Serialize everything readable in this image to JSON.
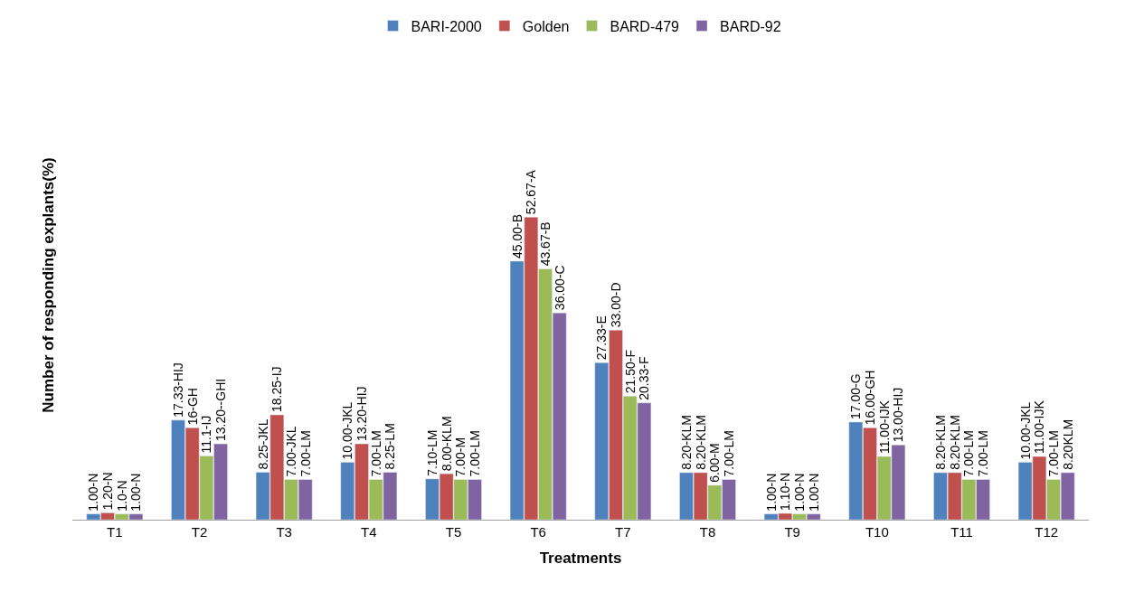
{
  "chart_data": {
    "type": "bar",
    "xlabel": "Treatments",
    "ylabel": "Number of responding explants(%)",
    "categories": [
      "T1",
      "T2",
      "T3",
      "T4",
      "T5",
      "T6",
      "T7",
      "T8",
      "T9",
      "T10",
      "T11",
      "T12"
    ],
    "series": [
      {
        "name": "BARI-2000",
        "color": "#4f81bd",
        "values": [
          1.0,
          17.33,
          8.25,
          10.0,
          7.1,
          45.0,
          27.33,
          8.2,
          1.0,
          17.0,
          8.2,
          10.0
        ],
        "value_labels": [
          "1.00-N",
          "17.33-HIJ",
          "8.25-JKL",
          "10.00-JKL",
          "7.10-LM",
          "45.00-B",
          "27.33-E",
          "8.20-KLM",
          "1.00-N",
          "17.00-G",
          "8.20-KLM",
          "10.00-JKL"
        ]
      },
      {
        "name": "Golden",
        "color": "#c0504d",
        "values": [
          1.2,
          16,
          18.25,
          13.2,
          8.0,
          52.67,
          33.0,
          8.2,
          1.1,
          16.0,
          8.2,
          11.0
        ],
        "value_labels": [
          "1.20-N",
          "16-GH",
          "18.25-IJ",
          "13.20-HIJ",
          "8.00-KLM",
          "52.67-A",
          "33.00-D",
          "8.20-KLM",
          "1.10-N",
          "16.00-GH",
          "8.20-KLM",
          "11.00-IJK"
        ]
      },
      {
        "name": "BARD-479",
        "color": "#9bbb59",
        "values": [
          1.0,
          11.1,
          7.0,
          7.0,
          7.0,
          43.67,
          21.5,
          6.0,
          1.0,
          11.0,
          7.0,
          7.0
        ],
        "value_labels": [
          "1.0-N",
          "11.1-IJ",
          "7.00-JKL",
          "7.00-LM",
          "7.00-M",
          "43.67-B",
          "21.50-F",
          "6.00-M",
          "1.00-N",
          "11.00-IJK",
          "7.00-LM",
          "7.00-LM"
        ]
      },
      {
        "name": "BARD-92",
        "color": "#8064a2",
        "values": [
          1.0,
          13.2,
          7.0,
          8.25,
          7.0,
          36.0,
          20.33,
          7.0,
          1.0,
          13.0,
          7.0,
          8.2
        ],
        "value_labels": [
          "1.00-N",
          "13.20--GHI",
          "7.00-LM",
          "8.25-LM",
          "7.00-LM",
          "36.00-C",
          "20.33-F",
          "7.00-LM",
          "1.00-N",
          "13.00-HIJ",
          "7.00-LM",
          "8.20KLM"
        ]
      }
    ],
    "legend": "top"
  }
}
